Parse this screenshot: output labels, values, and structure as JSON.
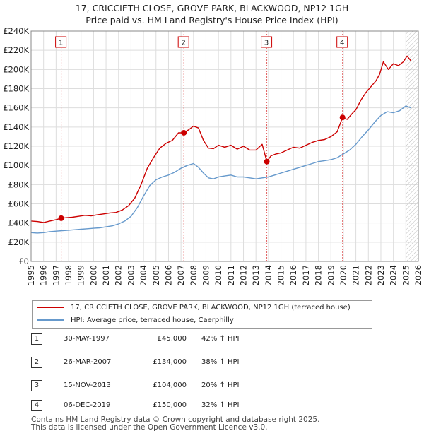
{
  "title_line1": "17, CRICCIETH CLOSE, GROVE PARK, BLACKWOOD, NP12 1GH",
  "title_line2": "Price paid vs. HM Land Registry's House Price Index (HPI)",
  "chart_data": {
    "type": "line",
    "title": "Price paid vs. HM Land Registry's House Price Index (HPI)",
    "ylim": [
      0,
      240000
    ],
    "xlim": [
      1995,
      2026
    ],
    "y_ticks": [
      0,
      20000,
      40000,
      60000,
      80000,
      100000,
      120000,
      140000,
      160000,
      180000,
      200000,
      220000,
      240000
    ],
    "y_tick_labels": [
      "£0",
      "£20K",
      "£40K",
      "£60K",
      "£80K",
      "£100K",
      "£120K",
      "£140K",
      "£160K",
      "£180K",
      "£200K",
      "£220K",
      "£240K"
    ],
    "x_ticks": [
      1995,
      1996,
      1997,
      1998,
      1999,
      2000,
      2001,
      2002,
      2003,
      2004,
      2005,
      2006,
      2007,
      2008,
      2009,
      2010,
      2011,
      2012,
      2013,
      2014,
      2015,
      2016,
      2017,
      2018,
      2019,
      2020,
      2021,
      2022,
      2023,
      2024,
      2025,
      2026
    ],
    "x_tick_labels": [
      "1995",
      "1996",
      "1997",
      "1998",
      "1999",
      "2000",
      "2001",
      "2002",
      "2003",
      "2004",
      "2005",
      "2006",
      "2007",
      "2008",
      "2009",
      "2010",
      "2011",
      "2012",
      "2013",
      "2014",
      "2015",
      "2016",
      "2017",
      "2018",
      "2019",
      "2020",
      "2021",
      "2022",
      "2023",
      "2024",
      "2025",
      "2026"
    ],
    "series": [
      {
        "name": "17, CRICCIETH CLOSE, GROVE PARK, BLACKWOOD, NP12 1GH (terraced house)",
        "color": "#cc0000",
        "x": [
          1995.0,
          1995.5,
          1996.0,
          1996.5,
          1997.0,
          1997.41,
          1997.8,
          1998.3,
          1998.8,
          1999.3,
          1999.8,
          2000.3,
          2000.8,
          2001.3,
          2001.8,
          2002.3,
          2002.8,
          2003.3,
          2003.8,
          2004.3,
          2004.8,
          2005.3,
          2005.8,
          2006.3,
          2006.8,
          2007.23,
          2007.6,
          2008.0,
          2008.4,
          2008.8,
          2009.2,
          2009.6,
          2010.0,
          2010.5,
          2011.0,
          2011.5,
          2012.0,
          2012.5,
          2013.0,
          2013.5,
          2013.87,
          2014.2,
          2014.6,
          2015.0,
          2015.5,
          2016.0,
          2016.5,
          2017.0,
          2017.5,
          2018.0,
          2018.5,
          2019.0,
          2019.5,
          2019.93,
          2020.3,
          2020.7,
          2021.0,
          2021.4,
          2021.8,
          2022.2,
          2022.6,
          2022.9,
          2023.2,
          2023.6,
          2024.0,
          2024.4,
          2024.8,
          2025.1,
          2025.4
        ],
        "values": [
          42000,
          41500,
          40500,
          42000,
          43500,
          45000,
          45500,
          46000,
          47000,
          48000,
          47500,
          48500,
          49500,
          50500,
          51000,
          53500,
          58000,
          66000,
          80000,
          97000,
          108000,
          118000,
          123000,
          126000,
          134000,
          134000,
          137000,
          141000,
          139000,
          126000,
          118000,
          117500,
          121000,
          119000,
          121000,
          117000,
          120000,
          116000,
          116000,
          122000,
          104000,
          110000,
          112000,
          113000,
          116000,
          119000,
          118000,
          121000,
          124000,
          126000,
          127000,
          130000,
          135000,
          150000,
          148000,
          154000,
          158000,
          168000,
          176000,
          182000,
          188000,
          195000,
          208000,
          200000,
          206000,
          204000,
          208000,
          214000,
          209000
        ]
      },
      {
        "name": "HPI: Average price, terraced house, Caerphilly",
        "color": "#6699cc",
        "x": [
          1995.0,
          1995.5,
          1996.0,
          1996.5,
          1997.0,
          1997.5,
          1998.0,
          1998.5,
          1999.0,
          1999.5,
          2000.0,
          2000.5,
          2001.0,
          2001.5,
          2002.0,
          2002.5,
          2003.0,
          2003.5,
          2004.0,
          2004.5,
          2005.0,
          2005.5,
          2006.0,
          2006.5,
          2007.0,
          2007.5,
          2008.0,
          2008.4,
          2008.8,
          2009.2,
          2009.6,
          2010.0,
          2010.5,
          2011.0,
          2011.5,
          2012.0,
          2012.5,
          2013.0,
          2013.5,
          2014.0,
          2014.5,
          2015.0,
          2015.5,
          2016.0,
          2016.5,
          2017.0,
          2017.5,
          2018.0,
          2018.5,
          2019.0,
          2019.5,
          2020.0,
          2020.5,
          2021.0,
          2021.5,
          2022.0,
          2022.5,
          2023.0,
          2023.5,
          2024.0,
          2024.5,
          2025.0,
          2025.4
        ],
        "values": [
          30000,
          29500,
          30000,
          31000,
          31500,
          32000,
          32500,
          33000,
          33500,
          34000,
          34500,
          35000,
          36000,
          37000,
          39000,
          42000,
          47000,
          56000,
          68000,
          79000,
          85000,
          88000,
          90000,
          93000,
          97000,
          100000,
          102000,
          98000,
          92000,
          87000,
          86000,
          88000,
          89000,
          90000,
          88000,
          88000,
          87000,
          86000,
          87000,
          88000,
          90000,
          92000,
          94000,
          96000,
          98000,
          100000,
          102000,
          104000,
          105000,
          106000,
          108000,
          112000,
          116000,
          122000,
          130000,
          137000,
          145000,
          152000,
          156000,
          155000,
          157000,
          162000,
          160000
        ]
      }
    ],
    "markers": [
      {
        "label": "1",
        "x": 1997.41,
        "y": 45000
      },
      {
        "label": "2",
        "x": 2007.23,
        "y": 134000
      },
      {
        "label": "3",
        "x": 2013.87,
        "y": 104000
      },
      {
        "label": "4",
        "x": 2019.93,
        "y": 150000
      }
    ],
    "hatch_from": 2025.0
  },
  "legend": {
    "property_label": "17, CRICCIETH CLOSE, GROVE PARK, BLACKWOOD, NP12 1GH (terraced house)",
    "hpi_label": "HPI: Average price, terraced house, Caerphilly"
  },
  "sales": [
    {
      "num": "1",
      "date": "30-MAY-1997",
      "price": "£45,000",
      "hpi": "42% ↑ HPI"
    },
    {
      "num": "2",
      "date": "26-MAR-2007",
      "price": "£134,000",
      "hpi": "38% ↑ HPI"
    },
    {
      "num": "3",
      "date": "15-NOV-2013",
      "price": "£104,000",
      "hpi": "20% ↑ HPI"
    },
    {
      "num": "4",
      "date": "06-DEC-2019",
      "price": "£150,000",
      "hpi": "32% ↑ HPI"
    }
  ],
  "footer_line1": "Contains HM Land Registry data © Crown copyright and database right 2025.",
  "footer_line2": "This data is licensed under the Open Government Licence v3.0."
}
